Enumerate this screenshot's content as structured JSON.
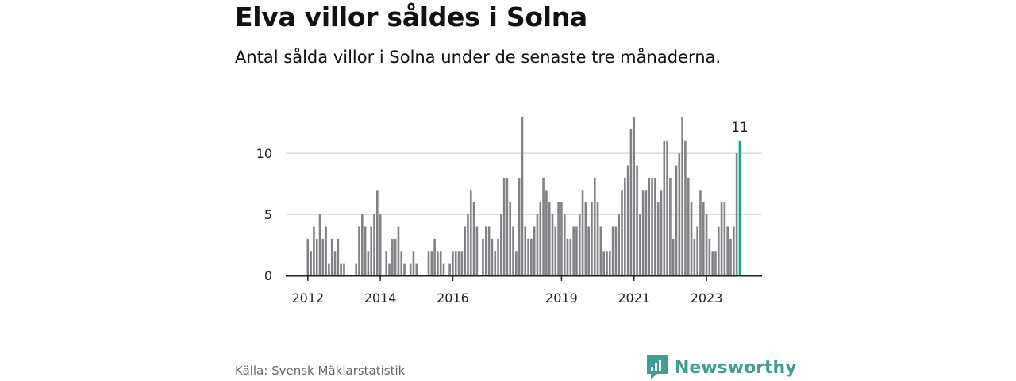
{
  "header": {
    "title": "Elva villor såldes i Solna",
    "subtitle": "Antal sålda villor i Solna under de senaste tre månaderna."
  },
  "footer": {
    "source": "Källa: Svensk Mäklarstatistik",
    "brand": "Newsworthy"
  },
  "colors": {
    "bar": "#808085",
    "highlight": "#16a394",
    "grid": "#d9d9d9",
    "axis": "#222222",
    "brand": "#3e9e93"
  },
  "chart_data": {
    "type": "bar",
    "title": "Elva villor såldes i Solna",
    "xlabel": "",
    "ylabel": "",
    "ylim": [
      0,
      13
    ],
    "yticks": [
      0,
      5,
      10
    ],
    "grid": true,
    "start": "2012-01",
    "values": [
      3,
      2,
      4,
      3,
      5,
      3,
      4,
      1,
      3,
      2,
      3,
      1,
      1,
      0,
      0,
      0,
      1,
      4,
      5,
      4,
      2,
      4,
      5,
      7,
      5,
      0,
      2,
      1,
      3,
      3,
      4,
      2,
      1,
      0,
      1,
      2,
      1,
      0,
      0,
      0,
      2,
      2,
      3,
      2,
      2,
      1,
      0,
      1,
      2,
      2,
      2,
      2,
      4,
      5,
      7,
      6,
      4,
      0,
      3,
      4,
      4,
      3,
      2,
      3,
      5,
      8,
      8,
      6,
      4,
      2,
      8,
      13,
      4,
      3,
      3,
      4,
      5,
      6,
      8,
      7,
      6,
      5,
      4,
      6,
      6,
      5,
      3,
      3,
      4,
      4,
      5,
      7,
      6,
      4,
      6,
      8,
      6,
      4,
      2,
      2,
      2,
      4,
      4,
      5,
      7,
      8,
      9,
      12,
      13,
      9,
      5,
      7,
      7,
      8,
      8,
      8,
      6,
      7,
      11,
      11,
      8,
      3,
      9,
      10,
      13,
      11,
      8,
      6,
      3,
      4,
      7,
      6,
      5,
      3,
      2,
      2,
      4,
      6,
      6,
      4,
      3,
      4,
      10,
      11
    ],
    "x_ticks": [
      {
        "label": "2012",
        "index": 0
      },
      {
        "label": "2014",
        "index": 24
      },
      {
        "label": "2016",
        "index": 48
      },
      {
        "label": "2019",
        "index": 84
      },
      {
        "label": "2021",
        "index": 108
      },
      {
        "label": "2023",
        "index": 132
      }
    ],
    "highlight": {
      "index": 143,
      "label": "11"
    }
  }
}
